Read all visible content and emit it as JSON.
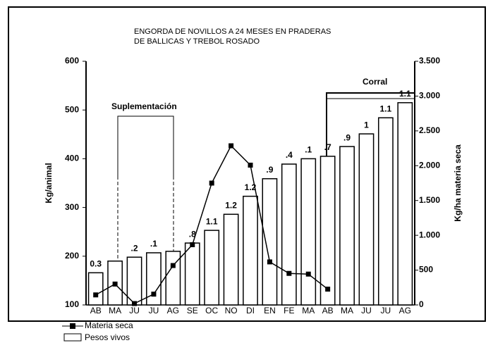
{
  "chart_data": {
    "type": "bar-line",
    "title": [
      "ENGORDA DE NOVILLOS A 24 MESES EN PRADERAS",
      "DE BALLICAS Y TREBOL ROSADO"
    ],
    "ylabel": "Kg/animal",
    "y2label": "Kg/ha materia seca",
    "categories": [
      "AB",
      "MA",
      "JU",
      "JU",
      "AG",
      "SE",
      "OC",
      "NO",
      "DI",
      "EN",
      "FE",
      "MA",
      "AB",
      "MA",
      "JU",
      "JU",
      "AG"
    ],
    "ylim": [
      100,
      600
    ],
    "yticks": [
      100,
      200,
      300,
      400,
      500,
      600
    ],
    "y2lim": [
      0,
      3500
    ],
    "y2ticks": [
      0,
      500,
      {
        "value": 1000,
        "label": "1.000"
      },
      {
        "value": 1500,
        "label": "1.500"
      },
      {
        "value": 2000,
        "label": "2.000"
      },
      {
        "value": 2500,
        "label": "2.500"
      },
      {
        "value": 3000,
        "label": "3.000"
      },
      {
        "value": 3500,
        "label": "3.500"
      }
    ],
    "series": [
      {
        "name": "Pesos vivos",
        "type": "bar",
        "color": "#ffffff",
        "values": [
          166,
          190,
          198,
          207,
          210,
          227,
          253,
          286,
          323,
          359,
          389,
          400,
          405,
          425,
          451,
          484,
          515
        ]
      },
      {
        "name": "Materia seca",
        "type": "line",
        "axis": "y2",
        "color": "#000000",
        "values": [
          144,
          300,
          20,
          155,
          566,
          865,
          1750,
          2286,
          2008,
          618,
          453,
          443,
          227,
          null,
          null,
          null,
          null
        ]
      }
    ],
    "bar_annotations": [
      "0.3",
      null,
      ".2",
      ".1",
      null,
      ".8",
      "1.1",
      "1.2",
      "1.2",
      ".9",
      ".4",
      ".1",
      ".7",
      ".9",
      "1",
      "1.1",
      "1.1"
    ],
    "annotations": [
      "Suplementación",
      "Corral"
    ]
  }
}
